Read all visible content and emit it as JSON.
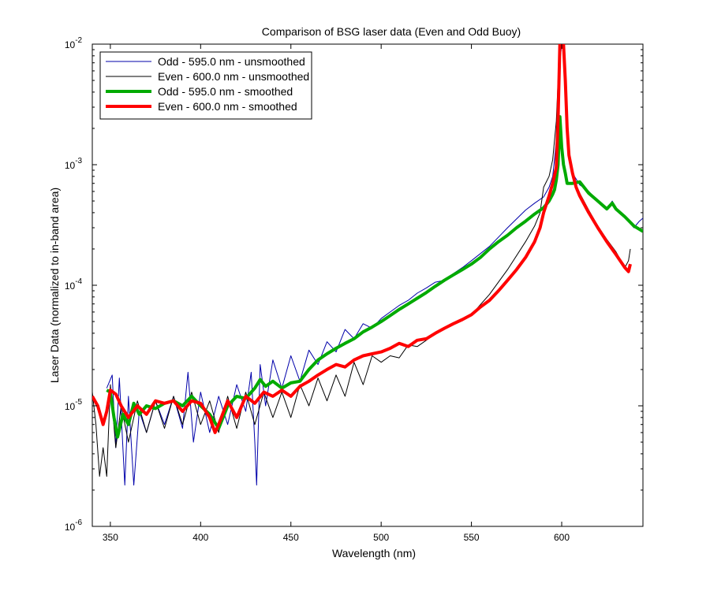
{
  "chart_data": {
    "type": "line",
    "title": "Comparison of BSG laser data (Even and Odd Buoy)",
    "xlabel": "Wavelength (nm)",
    "ylabel": "Laser Data (normalized to in-band area)",
    "xlim": [
      340,
      645
    ],
    "ylim": [
      1e-06,
      0.01
    ],
    "yscale": "log",
    "grid": false,
    "legend_position": "top-left",
    "x_ticks": [
      350,
      400,
      450,
      500,
      550,
      600
    ],
    "y_ticks": [
      {
        "value": 1e-06,
        "base": "10",
        "exp": "-6"
      },
      {
        "value": 1e-05,
        "base": "10",
        "exp": "-5"
      },
      {
        "value": 0.0001,
        "base": "10",
        "exp": "-4"
      },
      {
        "value": 0.001,
        "base": "10",
        "exp": "-3"
      },
      {
        "value": 0.01,
        "base": "10",
        "exp": "-2"
      }
    ],
    "series": [
      {
        "name": "Odd - 595.0 nm - unsmoothed",
        "color": "#0000aa",
        "width": 1,
        "x": [
          348,
          351,
          353,
          355,
          358,
          360,
          363,
          366,
          370,
          375,
          380,
          385,
          390,
          393,
          396,
          400,
          405,
          410,
          415,
          420,
          425,
          428,
          430,
          431,
          433,
          436,
          440,
          445,
          450,
          455,
          460,
          465,
          470,
          475,
          480,
          485,
          490,
          495,
          500,
          505,
          510,
          515,
          520,
          525,
          530,
          535,
          540,
          545,
          550,
          560,
          570,
          580,
          585,
          590,
          593,
          595,
          596,
          597,
          598,
          599,
          600,
          601,
          602,
          603,
          604,
          606,
          610,
          615,
          620,
          625,
          628,
          630,
          635,
          640,
          643,
          645
        ],
        "y": [
          1.4e-05,
          1.8e-05,
          4.5e-06,
          1.7e-05,
          2.2e-06,
          1.2e-05,
          2.2e-06,
          9e-06,
          6e-06,
          1.1e-05,
          7e-06,
          1.2e-05,
          6.5e-06,
          1.9e-05,
          5e-06,
          1.3e-05,
          6e-06,
          1.2e-05,
          7e-06,
          1.5e-05,
          9e-06,
          1.9e-05,
          5e-06,
          2.2e-06,
          2.2e-05,
          1e-05,
          2.4e-05,
          1.4e-05,
          2.6e-05,
          1.6e-05,
          2.9e-05,
          2.2e-05,
          3.4e-05,
          2.8e-05,
          4.3e-05,
          3.6e-05,
          4.8e-05,
          4.4e-05,
          5.3e-05,
          6e-05,
          6.8e-05,
          7.5e-05,
          8.6e-05,
          9.5e-05,
          0.000106,
          0.00011,
          0.000125,
          0.00014,
          0.00016,
          0.00021,
          0.0003,
          0.00042,
          0.00048,
          0.00054,
          0.00065,
          0.0008,
          0.0011,
          0.0016,
          0.003,
          0.007,
          0.01,
          0.01,
          0.004,
          0.0018,
          0.0011,
          0.00085,
          0.00068,
          0.0006,
          0.0005,
          0.00043,
          0.0005,
          0.00043,
          0.00037,
          0.0003,
          0.00034,
          0.00036
        ]
      },
      {
        "name": "Even - 600.0 nm - unsmoothed",
        "color": "#000000",
        "width": 1,
        "x": [
          340,
          342,
          344,
          346,
          348,
          350,
          353,
          356,
          360,
          365,
          370,
          375,
          380,
          385,
          390,
          395,
          400,
          405,
          410,
          415,
          420,
          425,
          430,
          435,
          440,
          445,
          450,
          455,
          460,
          465,
          470,
          475,
          480,
          485,
          490,
          495,
          500,
          505,
          510,
          515,
          520,
          525,
          530,
          540,
          550,
          560,
          570,
          580,
          585,
          588,
          590,
          593,
          595,
          597,
          598,
          599,
          600,
          601,
          602,
          603,
          604,
          606,
          610,
          615,
          620,
          625,
          630,
          635,
          637,
          638
        ],
        "y": [
          1.3e-05,
          7e-06,
          2.6e-06,
          4.5e-06,
          2.6e-06,
          1.5e-05,
          4.5e-06,
          1e-05,
          5e-06,
          1.1e-05,
          6e-06,
          1.1e-05,
          6.5e-06,
          1.2e-05,
          7e-06,
          1.3e-05,
          7e-06,
          1.1e-05,
          6e-06,
          1.2e-05,
          6.5e-06,
          1.3e-05,
          7e-06,
          1.3e-05,
          8e-06,
          1.3e-05,
          8e-06,
          1.5e-05,
          1e-05,
          1.7e-05,
          1.1e-05,
          1.8e-05,
          1.2e-05,
          2.3e-05,
          1.5e-05,
          2.6e-05,
          2.3e-05,
          2.6e-05,
          2.5e-05,
          3.2e-05,
          3.1e-05,
          3.5e-05,
          4e-05,
          4.8e-05,
          5.7e-05,
          8.4e-05,
          0.000135,
          0.00023,
          0.00031,
          0.0004,
          0.00065,
          0.0008,
          0.0011,
          0.0023,
          0.005,
          0.01,
          0.01,
          0.01,
          0.006,
          0.0022,
          0.0012,
          0.0008,
          0.00058,
          0.00042,
          0.00031,
          0.00024,
          0.00019,
          0.00014,
          0.00016,
          0.0002
        ]
      },
      {
        "name": "Odd - 595.0 nm - smoothed",
        "color": "#00aa00",
        "width": 4,
        "x": [
          348,
          350,
          352,
          354,
          357,
          360,
          363,
          366,
          370,
          375,
          380,
          385,
          390,
          395,
          400,
          405,
          410,
          415,
          420,
          425,
          430,
          433,
          436,
          440,
          445,
          450,
          455,
          460,
          465,
          470,
          475,
          480,
          485,
          490,
          495,
          500,
          505,
          510,
          515,
          520,
          525,
          530,
          535,
          540,
          545,
          550,
          555,
          560,
          565,
          570,
          575,
          580,
          585,
          590,
          593,
          595,
          596,
          597,
          598,
          599,
          600,
          601,
          602,
          603,
          604,
          606,
          610,
          615,
          620,
          625,
          628,
          630,
          635,
          640,
          645
        ],
        "y": [
          1.35e-05,
          1.3e-05,
          8e-06,
          5.5e-06,
          8.5e-06,
          7e-06,
          1.05e-05,
          8.5e-06,
          1e-05,
          9.5e-06,
          1.05e-05,
          1.1e-05,
          1e-05,
          1.2e-05,
          1e-05,
          8.5e-06,
          6.5e-06,
          1e-05,
          1.2e-05,
          1.15e-05,
          1.4e-05,
          1.65e-05,
          1.45e-05,
          1.6e-05,
          1.4e-05,
          1.55e-05,
          1.6e-05,
          2e-05,
          2.4e-05,
          2.7e-05,
          3e-05,
          3.3e-05,
          3.6e-05,
          4.1e-05,
          4.5e-05,
          5e-05,
          5.6e-05,
          6.3e-05,
          7e-05,
          7.8e-05,
          8.7e-05,
          9.8e-05,
          0.00011,
          0.000122,
          0.000135,
          0.00015,
          0.00017,
          0.0002,
          0.00023,
          0.00026,
          0.0003,
          0.00034,
          0.00039,
          0.00044,
          0.0005,
          0.00057,
          0.00062,
          0.00075,
          0.001,
          0.0025,
          0.0014,
          0.001,
          0.00085,
          0.0007,
          0.0007,
          0.0007,
          0.00072,
          0.00058,
          0.0005,
          0.00043,
          0.00048,
          0.00043,
          0.00037,
          0.00031,
          0.00028
        ]
      },
      {
        "name": "Even - 600.0 nm - smoothed",
        "color": "#ff0000",
        "width": 4,
        "x": [
          340,
          343,
          346,
          348,
          350,
          353,
          356,
          360,
          365,
          370,
          375,
          380,
          385,
          390,
          395,
          400,
          405,
          408,
          410,
          415,
          420,
          425,
          430,
          435,
          440,
          445,
          450,
          455,
          460,
          465,
          470,
          475,
          480,
          485,
          490,
          495,
          500,
          505,
          510,
          515,
          520,
          525,
          530,
          535,
          540,
          545,
          550,
          555,
          560,
          565,
          570,
          575,
          580,
          585,
          588,
          590,
          593,
          595,
          597,
          598,
          599,
          600,
          601,
          602,
          603,
          604,
          606,
          608,
          610,
          615,
          620,
          625,
          630,
          635,
          637,
          638
        ],
        "y": [
          1.2e-05,
          1e-05,
          7e-06,
          9e-06,
          1.35e-05,
          1.25e-05,
          1e-05,
          8e-06,
          1e-05,
          8.5e-06,
          1.1e-05,
          1.05e-05,
          1.1e-05,
          9e-06,
          1.1e-05,
          1.05e-05,
          8e-06,
          6e-06,
          7e-06,
          1.1e-05,
          8e-06,
          1.2e-05,
          1.05e-05,
          1.3e-05,
          1.2e-05,
          1.35e-05,
          1.2e-05,
          1.45e-05,
          1.6e-05,
          1.8e-05,
          2e-05,
          2.2e-05,
          2.1e-05,
          2.4e-05,
          2.6e-05,
          2.7e-05,
          2.8e-05,
          3e-05,
          3.3e-05,
          3.1e-05,
          3.5e-05,
          3.6e-05,
          4e-05,
          4.4e-05,
          4.8e-05,
          5.2e-05,
          5.7e-05,
          6.6e-05,
          7.5e-05,
          9e-05,
          0.00011,
          0.000135,
          0.00017,
          0.00023,
          0.0003,
          0.0004,
          0.00055,
          0.0007,
          0.00095,
          0.0024,
          0.01,
          0.01,
          0.01,
          0.005,
          0.002,
          0.0012,
          0.00085,
          0.00065,
          0.00055,
          0.0004,
          0.0003,
          0.00023,
          0.00018,
          0.00014,
          0.00013,
          0.00015
        ]
      }
    ]
  }
}
